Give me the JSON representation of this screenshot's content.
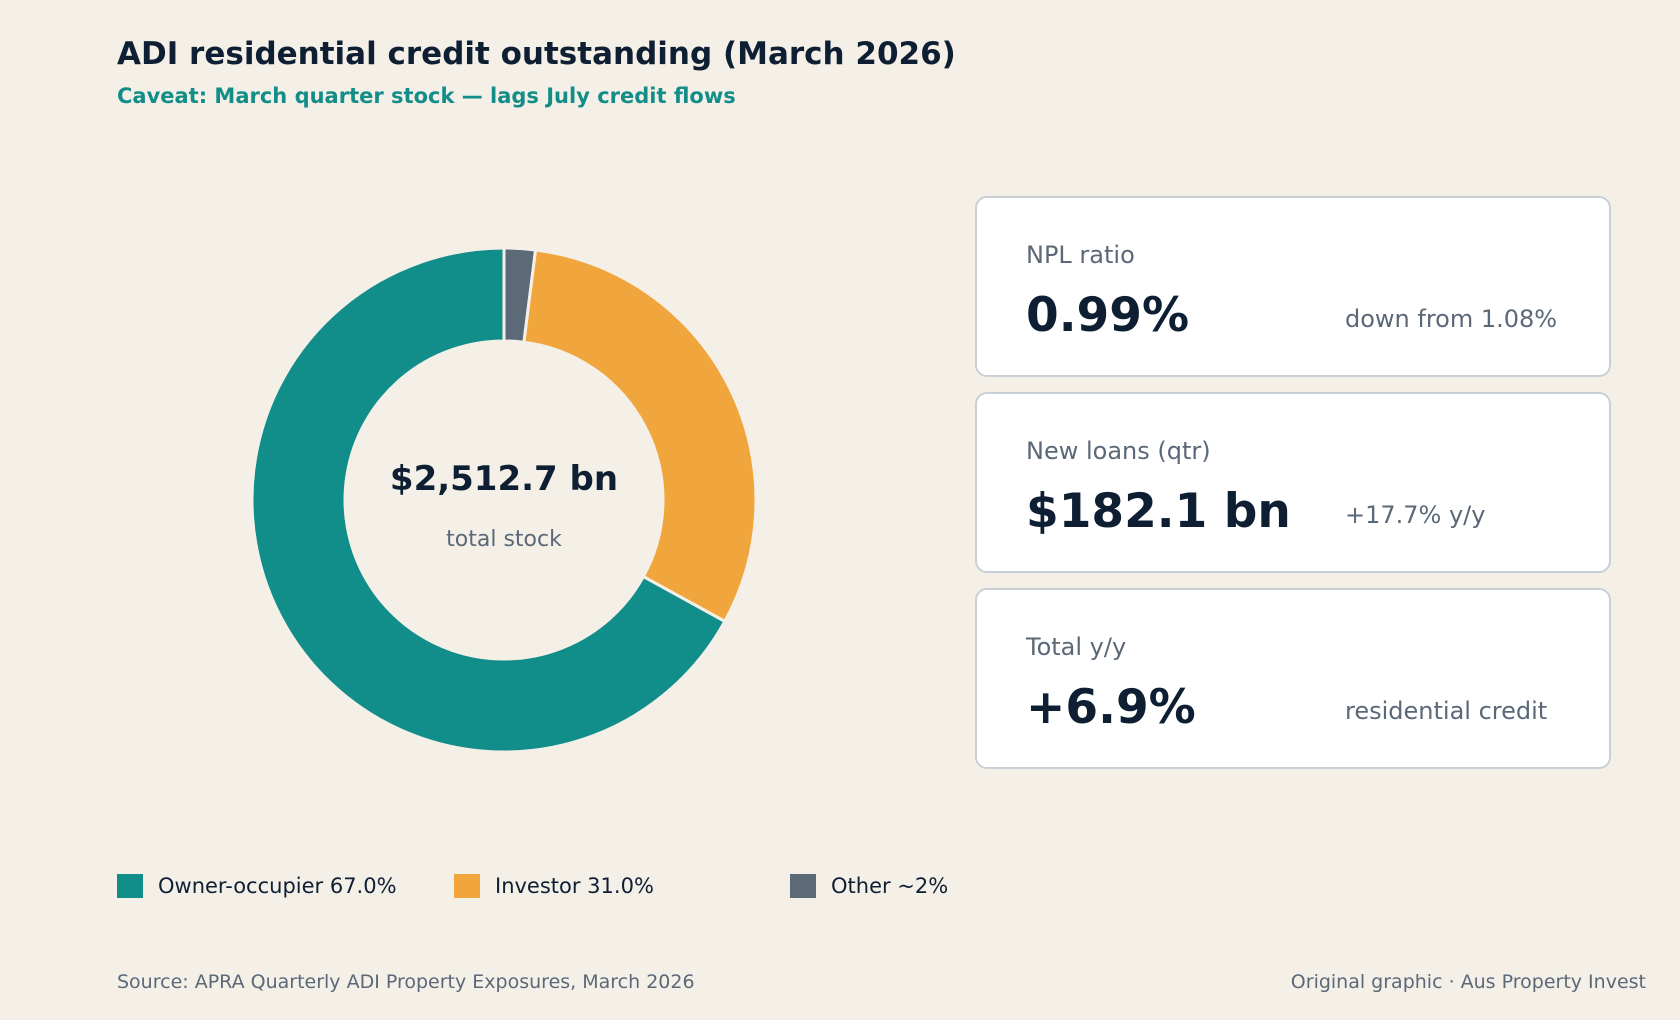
{
  "header": {
    "title": "ADI residential credit outstanding (March 2026)",
    "subtitle": "Caveat: March quarter stock — lags July credit flows"
  },
  "chart_data": {
    "type": "pie",
    "variant": "donut",
    "title": "ADI residential credit outstanding (March 2026)",
    "center_value": "$2,512.7 bn",
    "center_label": "total stock",
    "categories": [
      "Owner-occupier",
      "Investor",
      "Other"
    ],
    "values": [
      67.0,
      31.0,
      2.0
    ],
    "unit": "%",
    "legend": [
      {
        "label": "Owner-occupier 67.0%",
        "color": "#118d8a"
      },
      {
        "label": "Investor 31.0%",
        "color": "#f0a63c"
      },
      {
        "label": "Other ~2%",
        "color": "#5c6977"
      }
    ],
    "colors": [
      "#118d8a",
      "#f0a63c",
      "#5c6977"
    ],
    "legend_position": "bottom",
    "start_angle_deg": 0,
    "direction": "clockwise-from-top"
  },
  "kpis": [
    {
      "label": "NPL ratio",
      "value": "0.99%",
      "note": "down from 1.08%"
    },
    {
      "label": "New loans (qtr)",
      "value": "$182.1 bn",
      "note": "+17.7% y/y"
    },
    {
      "label": "Total y/y",
      "value": "+6.9%",
      "note": "residential credit"
    }
  ],
  "footer": {
    "source": "Source: APRA Quarterly ADI Property Exposures, March 2026",
    "credit": "Original graphic · Aus Property Invest"
  },
  "colors": {
    "background": "#f4f0e8",
    "text_dark": "#0f1f33",
    "accent_teal": "#138d88",
    "muted": "#5b6878",
    "card_border": "#c9cfd6"
  }
}
